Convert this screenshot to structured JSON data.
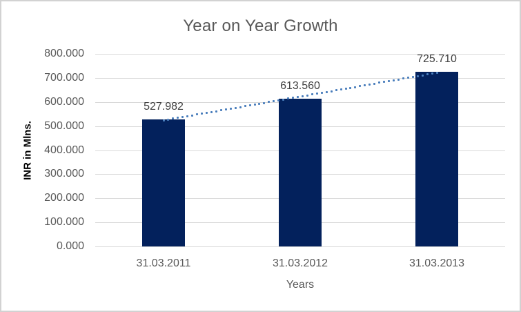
{
  "chart_data": {
    "type": "bar",
    "title": "Year on Year Growth",
    "xlabel": "Years",
    "ylabel": "INR in Mlns.",
    "categories": [
      "31.03.2011",
      "31.03.2012",
      "31.03.2013"
    ],
    "values": [
      527.982,
      613.56,
      725.71
    ],
    "data_labels": [
      "527.982",
      "613.560",
      "725.710"
    ],
    "ylim": [
      0,
      800
    ],
    "ytick_values": [
      0,
      100,
      200,
      300,
      400,
      500,
      600,
      700,
      800
    ],
    "ytick_labels": [
      "0.000",
      "100.000",
      "200.000",
      "300.000",
      "400.000",
      "500.000",
      "600.000",
      "700.000",
      "800.000"
    ],
    "grid": true,
    "legend": false,
    "trendline": {
      "type": "linear",
      "style": "dotted"
    },
    "colors": {
      "bar": "#03215c",
      "trendline": "#4a7ebc",
      "gridline": "#d9d9d9",
      "border": "#d2d2d2",
      "background": "#ffffff",
      "title_text": "#595959",
      "tick_text": "#595959",
      "data_label_text": "#404040",
      "axis_title_text": "#595959",
      "y_axis_title_text": "#000000"
    }
  }
}
